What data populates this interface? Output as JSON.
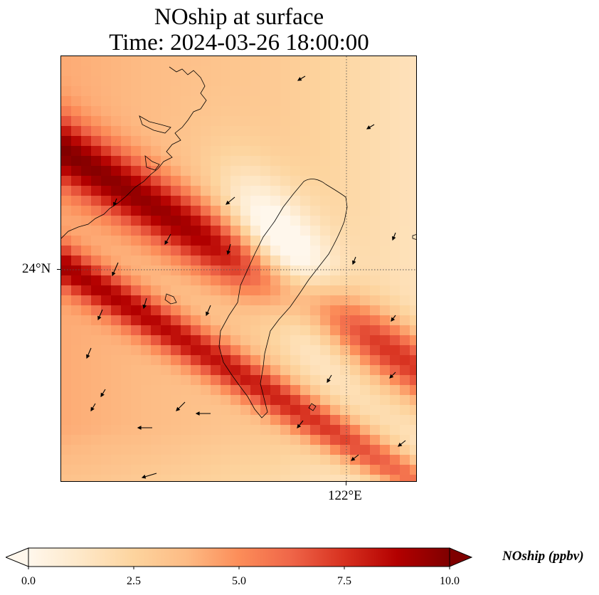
{
  "title": {
    "line1": "NOship at surface",
    "line2": "Time: 2024-03-26 18:00:00"
  },
  "map": {
    "variable": "NOship",
    "level": "surface",
    "lat_gridline_label": "24°N",
    "lon_gridline_label": "122°E",
    "gridline_style": "dotted",
    "coastline_color": "#000000",
    "wind_vectors": "shown"
  },
  "colorbar": {
    "label": "NOship (ppbv)",
    "min": 0.0,
    "max": 10.0,
    "extend": "both",
    "colormap": "OrRd",
    "stops": [
      "#fff7ec",
      "#fee8c8",
      "#fdd49e",
      "#fdbb84",
      "#fc8d59",
      "#ef6548",
      "#d7301f",
      "#b30000",
      "#7f0000"
    ],
    "ticks": [
      "0.0",
      "2.5",
      "5.0",
      "7.5",
      "10.0"
    ]
  }
}
